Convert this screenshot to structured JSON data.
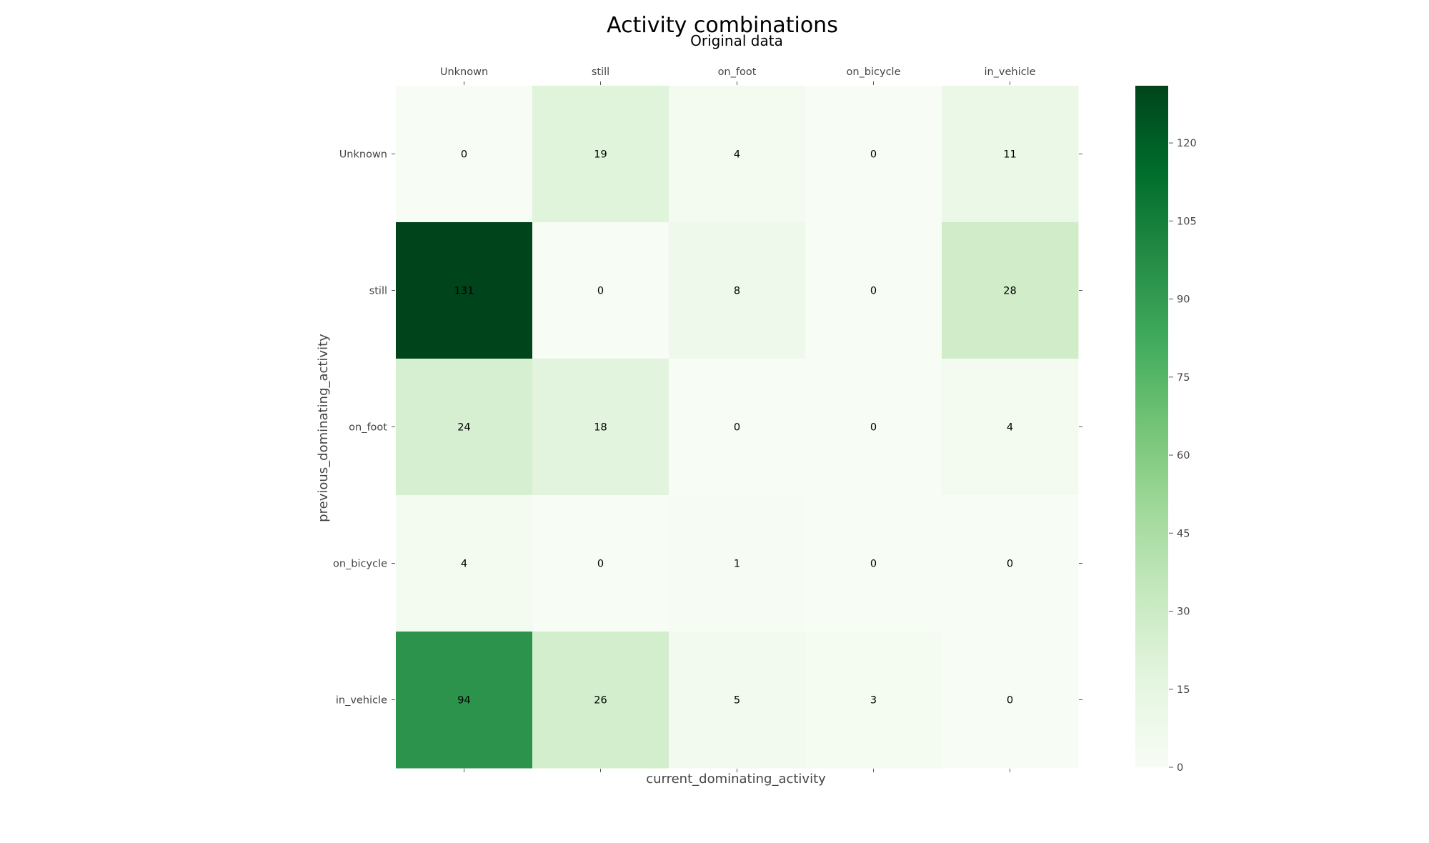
{
  "chart_data": {
    "type": "heatmap",
    "title": "Activity combinations",
    "subtitle": "Original data",
    "xlabel": "current_dominating_activity",
    "ylabel": "previous_dominating_activity",
    "x_categories": [
      "Unknown",
      "still",
      "on_foot",
      "on_bicycle",
      "in_vehicle"
    ],
    "y_categories": [
      "Unknown",
      "still",
      "on_foot",
      "on_bicycle",
      "in_vehicle"
    ],
    "values": [
      [
        0,
        19,
        4,
        0,
        11
      ],
      [
        131,
        0,
        8,
        0,
        28
      ],
      [
        24,
        18,
        0,
        0,
        4
      ],
      [
        4,
        0,
        1,
        0,
        0
      ],
      [
        94,
        26,
        5,
        3,
        0
      ]
    ],
    "colormap": "Greens",
    "colorbar": {
      "range": [
        0,
        131
      ],
      "ticks": [
        0,
        15,
        30,
        45,
        60,
        75,
        90,
        105,
        120
      ]
    }
  }
}
